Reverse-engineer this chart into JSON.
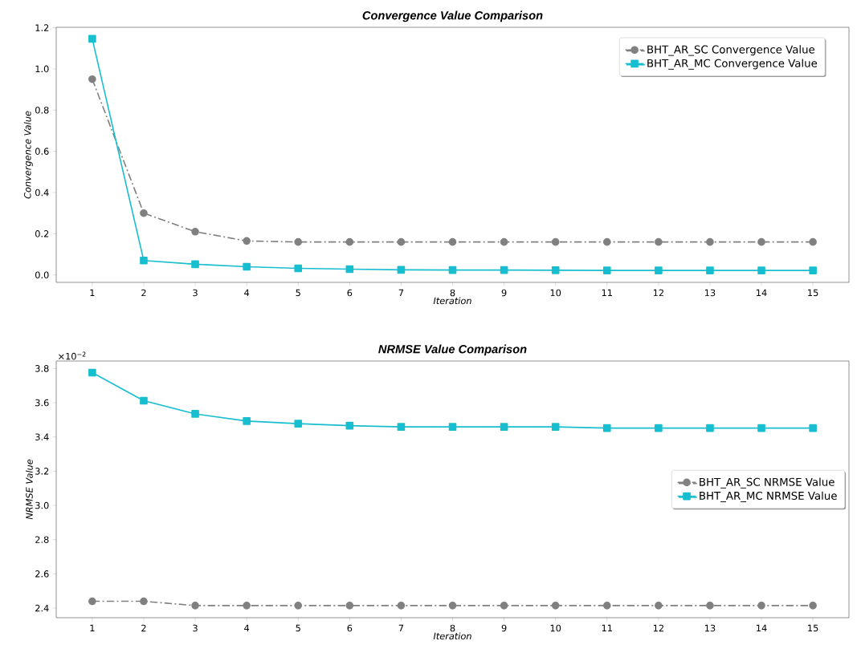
{
  "chart_data": [
    {
      "type": "line",
      "title": "Convergence Value Comparison",
      "xlabel": "Iteration",
      "ylabel": "Convergence Value",
      "x": [
        1,
        2,
        3,
        4,
        5,
        6,
        7,
        8,
        9,
        10,
        11,
        12,
        13,
        14,
        15
      ],
      "xlim": [
        0.3,
        15.7
      ],
      "xticks": [
        1,
        2,
        3,
        4,
        5,
        6,
        7,
        8,
        9,
        10,
        11,
        12,
        13,
        14,
        15
      ],
      "ylim": [
        -0.036,
        1.202
      ],
      "yticks": [
        {
          "value": 0,
          "label": "0.0"
        },
        0.2,
        0.4,
        0.6,
        0.8,
        {
          "value": 1,
          "label": "1.0"
        },
        1.2
      ],
      "legend": "top right",
      "grid": false,
      "series": [
        {
          "name": "BHT_AR_SC Convergence Value",
          "color": "#808080",
          "marker": "circle",
          "line_style": "dashdot",
          "values": [
            0.95,
            0.3,
            0.21,
            0.165,
            0.16,
            0.16,
            0.16,
            0.16,
            0.16,
            0.16,
            0.16,
            0.16,
            0.16,
            0.16,
            0.16
          ]
        },
        {
          "name": "BHT_AR_MC Convergence Value",
          "color": "#17becf",
          "marker": "square",
          "line_style": "solid",
          "values": [
            1.146,
            0.07,
            0.052,
            0.04,
            0.032,
            0.028,
            0.025,
            0.024,
            0.024,
            0.023,
            0.022,
            0.022,
            0.022,
            0.022,
            0.022
          ]
        }
      ]
    },
    {
      "type": "line",
      "title": "NRMSE Value Comparison",
      "xlabel": "Iteration",
      "ylabel": "NRMSE Value",
      "annotations": [
        "×10$^{−2}$"
      ],
      "x": [
        1,
        2,
        3,
        4,
        5,
        6,
        7,
        8,
        9,
        10,
        11,
        12,
        13,
        14,
        15
      ],
      "xlim": [
        0.3,
        15.7
      ],
      "xticks": [
        1,
        2,
        3,
        4,
        5,
        6,
        7,
        8,
        9,
        10,
        11,
        12,
        13,
        14,
        15
      ],
      "ylim": [
        2.344,
        3.844
      ],
      "yticks": [
        2.4,
        2.6,
        2.8,
        {
          "value": 3,
          "label": "3.0"
        },
        3.2,
        3.4,
        3.6,
        3.8
      ],
      "legend": "right",
      "grid": false,
      "series": [
        {
          "name": "BHT_AR_SC NRMSE Value",
          "color": "#808080",
          "marker": "circle",
          "line_style": "dashdot",
          "values": [
            2.44,
            2.44,
            2.415,
            2.415,
            2.415,
            2.415,
            2.415,
            2.415,
            2.415,
            2.415,
            2.415,
            2.415,
            2.415,
            2.415,
            2.415
          ]
        },
        {
          "name": "BHT_AR_MC NRMSE Value",
          "color": "#17becf",
          "marker": "square",
          "line_style": "solid",
          "values": [
            3.776,
            3.612,
            3.535,
            3.493,
            3.478,
            3.466,
            3.459,
            3.459,
            3.459,
            3.459,
            3.452,
            3.452,
            3.452,
            3.452,
            3.452
          ]
        }
      ]
    }
  ]
}
